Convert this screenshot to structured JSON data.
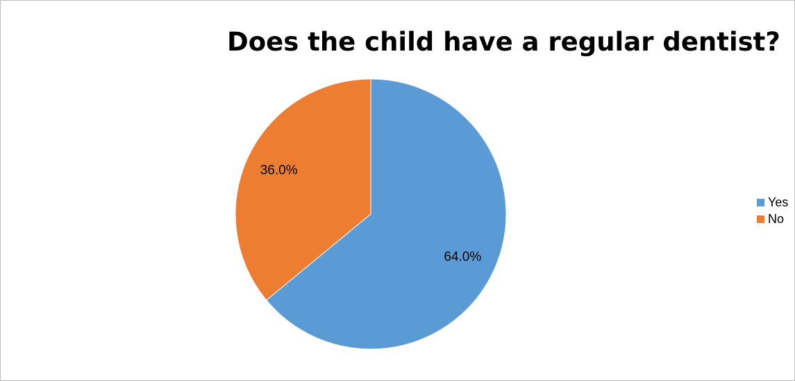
{
  "chart_data": {
    "type": "pie",
    "title": "Does the child have a regular dentist?",
    "categories": [
      "Yes",
      "No"
    ],
    "values": [
      64.0,
      36.0
    ],
    "labels": [
      "64.0%",
      "36.0%"
    ],
    "colors": [
      "#5b9bd5",
      "#ed7d31"
    ],
    "legend_position": "right"
  }
}
